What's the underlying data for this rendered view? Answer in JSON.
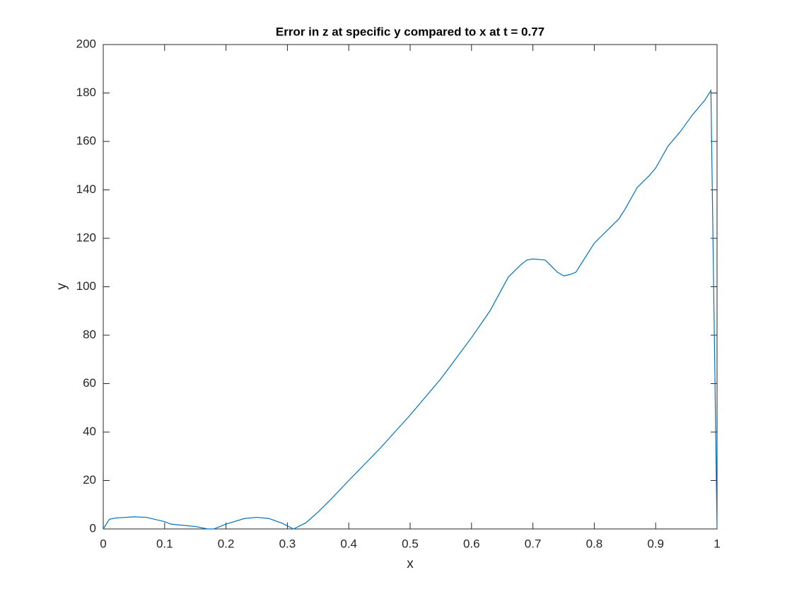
{
  "chart_data": {
    "type": "line",
    "title": "Error in z at specific y compared to x at t = 0.77",
    "xlabel": "x",
    "ylabel": "y",
    "x": [
      0,
      0.01,
      0.02,
      0.05,
      0.07,
      0.1,
      0.11,
      0.13,
      0.15,
      0.17,
      0.18,
      0.2,
      0.23,
      0.25,
      0.27,
      0.29,
      0.31,
      0.33,
      0.35,
      0.37,
      0.4,
      0.45,
      0.5,
      0.55,
      0.6,
      0.63,
      0.66,
      0.68,
      0.69,
      0.7,
      0.72,
      0.74,
      0.75,
      0.76,
      0.77,
      0.78,
      0.8,
      0.82,
      0.84,
      0.85,
      0.87,
      0.89,
      0.9,
      0.92,
      0.94,
      0.96,
      0.98,
      0.99,
      1.0
    ],
    "series": [
      {
        "color": "#0072bd",
        "values": [
          0,
          4,
          4.5,
          5,
          4.8,
          3,
          2,
          1.5,
          1,
          0,
          0,
          2,
          4.3,
          4.8,
          4.3,
          2.5,
          0,
          2.5,
          7,
          12,
          20,
          33,
          47,
          62,
          79,
          90,
          104,
          109,
          111,
          111.5,
          111,
          106,
          104.5,
          105,
          106,
          110,
          118,
          123,
          128,
          132,
          141,
          146,
          149,
          158,
          164,
          171,
          177,
          181,
          0
        ]
      }
    ],
    "xlim": [
      0,
      1
    ],
    "ylim": [
      0,
      200
    ],
    "xticks": [
      0,
      0.1,
      0.2,
      0.3,
      0.4,
      0.5,
      0.6,
      0.7,
      0.8,
      0.9,
      1
    ],
    "yticks": [
      0,
      20,
      40,
      60,
      80,
      100,
      120,
      140,
      160,
      180,
      200
    ]
  }
}
